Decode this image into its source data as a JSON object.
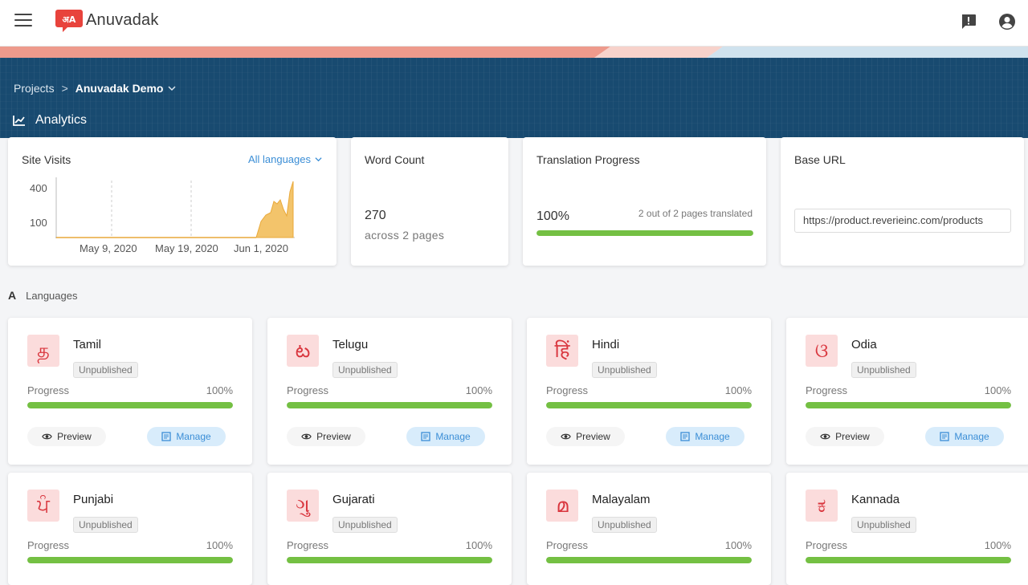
{
  "app": {
    "name": "Anuvadak"
  },
  "breadcrumb": {
    "root": "Projects",
    "separator": ">",
    "current": "Anuvadak Demo"
  },
  "section": {
    "title": "Analytics"
  },
  "site_visits": {
    "title": "Site Visits",
    "language_filter": "All languages",
    "y_ticks": [
      "400",
      "100"
    ],
    "x_ticks": [
      "May 9, 2020",
      "May 19, 2020",
      "Jun 1, 2020"
    ],
    "fill_color": "#f3c46b"
  },
  "word_count": {
    "title": "Word Count",
    "value": "270",
    "sub": "across 2 pages"
  },
  "translation_progress": {
    "title": "Translation Progress",
    "value": "100%",
    "note": "2 out of 2 pages translated",
    "fraction": 1.0
  },
  "base_url": {
    "title": "Base URL",
    "value": "https://product.reverieinc.com/products"
  },
  "languages": {
    "title": "Languages",
    "progress_label": "Progress",
    "preview_label": "Preview",
    "manage_label": "Manage",
    "items": [
      {
        "name": "Tamil",
        "glyph": "த",
        "status": "Unpublished",
        "progress": "100%"
      },
      {
        "name": "Telugu",
        "glyph": "ట",
        "status": "Unpublished",
        "progress": "100%"
      },
      {
        "name": "Hindi",
        "glyph": "हिं",
        "status": "Unpublished",
        "progress": "100%"
      },
      {
        "name": "Odia",
        "glyph": "ଓ",
        "status": "Unpublished",
        "progress": "100%"
      },
      {
        "name": "Punjabi",
        "glyph": "ਪੰ",
        "status": "Unpublished",
        "progress": "100%"
      },
      {
        "name": "Gujarati",
        "glyph": "ગુ",
        "status": "Unpublished",
        "progress": "100%"
      },
      {
        "name": "Malayalam",
        "glyph": "മ",
        "status": "Unpublished",
        "progress": "100%"
      },
      {
        "name": "Kannada",
        "glyph": "ಕ",
        "status": "Unpublished",
        "progress": "100%"
      }
    ]
  },
  "colors": {
    "banner": "#184a70",
    "accent": "#3b8ed6",
    "progress": "#74c043",
    "brand": "#e8433c"
  }
}
